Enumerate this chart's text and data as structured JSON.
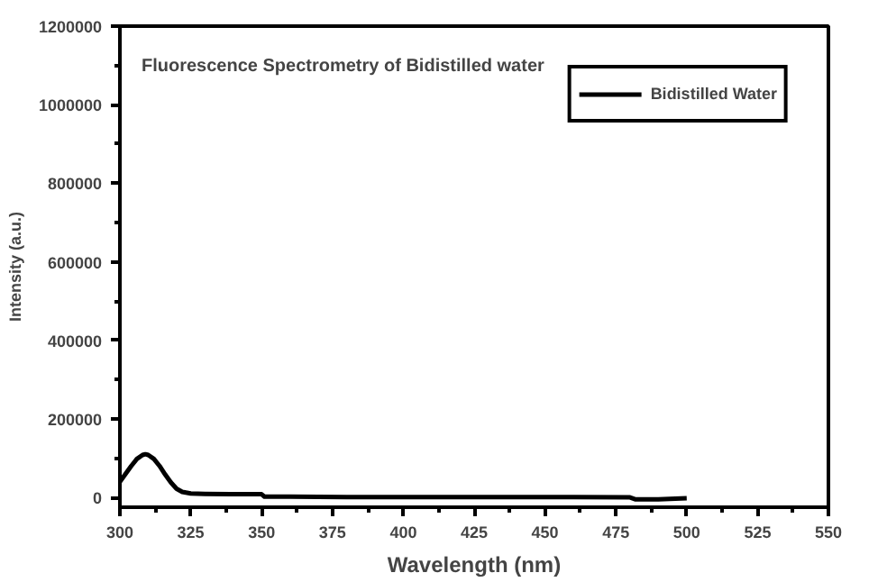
{
  "chart_data": {
    "type": "line",
    "title": "Fluorescence Spectrometry of Bidistilled water",
    "xlabel": "Wavelength (nm)",
    "ylabel": "Intensity (a.u.)",
    "series": [
      {
        "name": "Bidistilled Water",
        "color": "#000000",
        "x": [
          300,
          302,
          304,
          306,
          308,
          309,
          310,
          312,
          314,
          316,
          318,
          320,
          322,
          325,
          330,
          340,
          350,
          351,
          360,
          380,
          400,
          420,
          440,
          460,
          480,
          482,
          490,
          500
        ],
        "values": [
          40000,
          60000,
          80000,
          98000,
          108000,
          110000,
          108000,
          98000,
          80000,
          58000,
          38000,
          22000,
          14000,
          10000,
          9000,
          8000,
          8000,
          2000,
          2000,
          1000,
          1000,
          1000,
          1000,
          1000,
          0,
          -5000,
          -5000,
          -2000
        ]
      }
    ],
    "xlim": [
      300,
      550
    ],
    "ylim": [
      -25000,
      1200000
    ],
    "xticks": [
      300,
      {
        "value": 312.5,
        "label": null
      },
      325,
      {
        "value": 337.5,
        "label": null
      },
      350,
      {
        "value": 362.5,
        "label": null
      },
      375,
      {
        "value": 387.5,
        "label": null
      },
      400,
      {
        "value": 412.5,
        "label": null
      },
      425,
      {
        "value": 437.5,
        "label": null
      },
      450,
      {
        "value": 462.5,
        "label": null
      },
      475,
      {
        "value": 487.5,
        "label": null
      },
      500,
      {
        "value": 512.5,
        "label": null
      },
      525,
      {
        "value": 537.5,
        "label": null
      },
      550
    ],
    "yticks": [
      0,
      {
        "value": 100000,
        "label": null
      },
      200000,
      {
        "value": 300000,
        "label": null
      },
      400000,
      {
        "value": 500000,
        "label": null
      },
      600000,
      {
        "value": 700000,
        "label": null
      },
      800000,
      {
        "value": 900000,
        "label": null
      },
      1000000,
      {
        "value": 1100000,
        "label": null
      },
      1200000
    ],
    "legend": "top right",
    "grid": false,
    "line_style": "solid"
  }
}
